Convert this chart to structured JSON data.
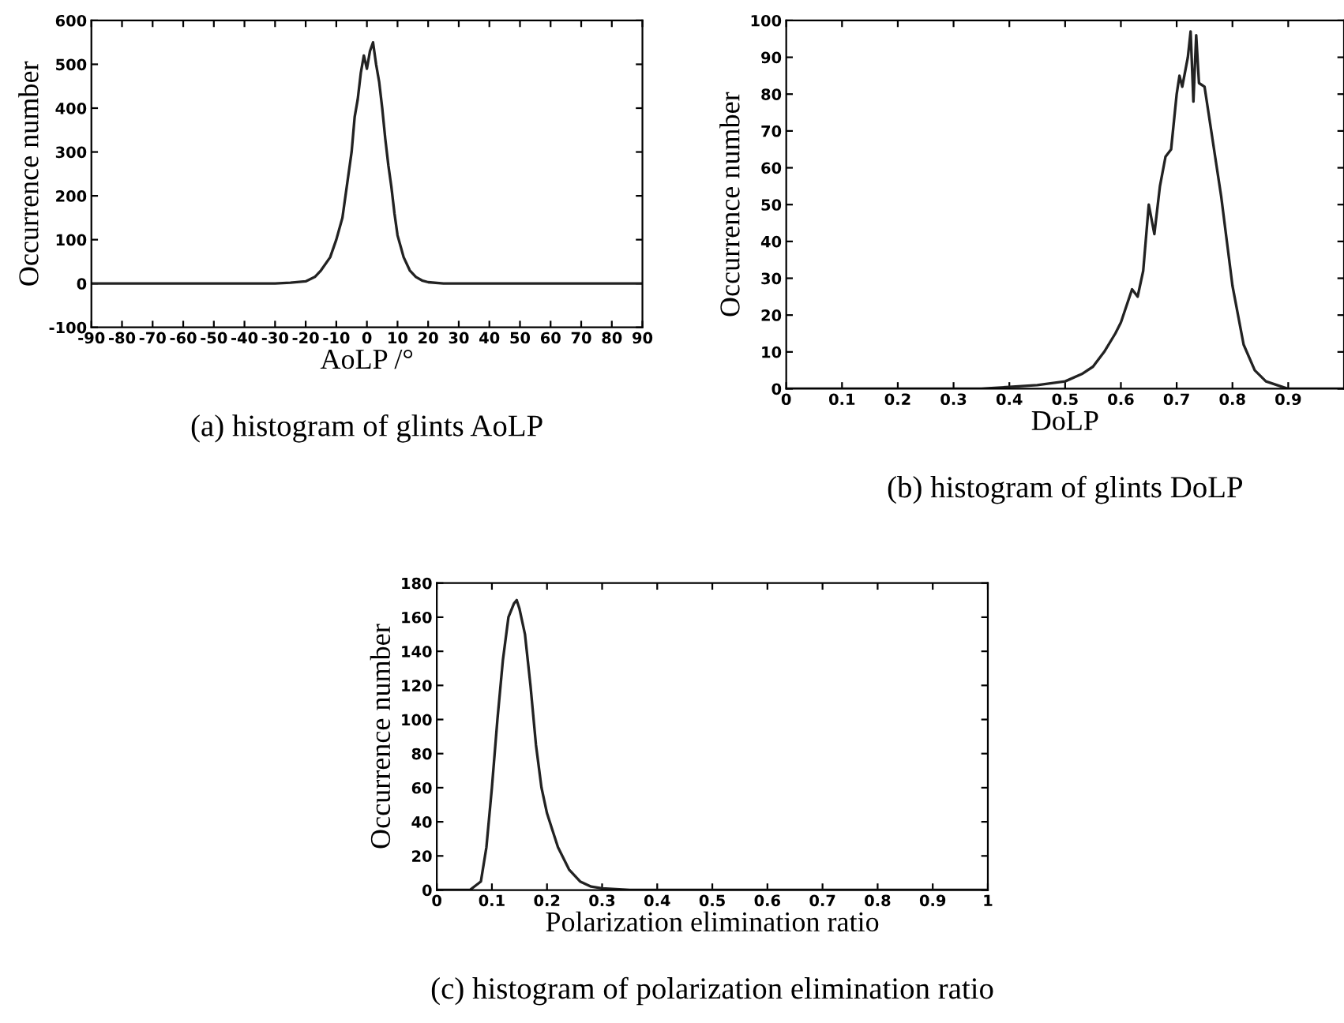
{
  "chart_data": [
    {
      "type": "line",
      "title": "(a) histogram of glints AoLP",
      "xlabel": "AoLP /°",
      "ylabel": "Occurrence number",
      "xlim": [
        -90,
        90
      ],
      "ylim": [
        -100,
        600
      ],
      "xticks": [
        -90,
        -80,
        -70,
        -60,
        -50,
        -40,
        -30,
        -20,
        -10,
        0,
        10,
        20,
        30,
        40,
        50,
        60,
        70,
        80,
        90
      ],
      "yticks": [
        -100,
        0,
        100,
        200,
        300,
        400,
        500,
        600
      ],
      "grid": false,
      "series": [
        {
          "color": "#222222",
          "x": [
            -90,
            -30,
            -25,
            -20,
            -17,
            -15,
            -12,
            -10,
            -8,
            -6,
            -5,
            -4,
            -3,
            -2,
            -1,
            0,
            1,
            2,
            3,
            4,
            5,
            6,
            7,
            8,
            9,
            10,
            12,
            14,
            16,
            18,
            20,
            25,
            90
          ],
          "values": [
            0,
            0,
            2,
            5,
            15,
            30,
            60,
            100,
            150,
            250,
            300,
            380,
            420,
            480,
            520,
            490,
            530,
            550,
            500,
            460,
            400,
            330,
            270,
            220,
            160,
            110,
            60,
            30,
            15,
            7,
            3,
            0,
            0
          ]
        }
      ]
    },
    {
      "type": "line",
      "title": "(b) histogram of glints DoLP",
      "xlabel": "DoLP",
      "ylabel": "Occurrence number",
      "xlim": [
        0,
        1
      ],
      "ylim": [
        0,
        100
      ],
      "xticks": [
        0,
        0.1,
        0.2,
        0.3,
        0.4,
        0.5,
        0.6,
        0.7,
        0.8,
        0.9
      ],
      "yticks": [
        0,
        10,
        20,
        30,
        40,
        50,
        60,
        70,
        80,
        90,
        100
      ],
      "grid": false,
      "series": [
        {
          "color": "#222222",
          "x": [
            0,
            0.35,
            0.4,
            0.45,
            0.5,
            0.53,
            0.55,
            0.57,
            0.59,
            0.6,
            0.62,
            0.63,
            0.64,
            0.65,
            0.66,
            0.67,
            0.68,
            0.69,
            0.7,
            0.705,
            0.71,
            0.72,
            0.725,
            0.73,
            0.735,
            0.74,
            0.75,
            0.76,
            0.77,
            0.78,
            0.79,
            0.8,
            0.82,
            0.84,
            0.86,
            0.88,
            0.9,
            1
          ],
          "values": [
            0,
            0,
            0.5,
            1,
            2,
            4,
            6,
            10,
            15,
            18,
            27,
            25,
            32,
            50,
            42,
            55,
            63,
            65,
            80,
            85,
            82,
            90,
            97,
            78,
            96,
            83,
            82,
            72,
            62,
            52,
            40,
            28,
            12,
            5,
            2,
            1,
            0,
            0
          ]
        }
      ]
    },
    {
      "type": "line",
      "title": "(c) histogram of polarization elimination ratio",
      "xlabel": "Polarization elimination ratio",
      "ylabel": "Occurrence number",
      "xlim": [
        0,
        1
      ],
      "ylim": [
        0,
        180
      ],
      "xticks": [
        0,
        0.1,
        0.2,
        0.3,
        0.4,
        0.5,
        0.6,
        0.7,
        0.8,
        0.9,
        1
      ],
      "yticks": [
        0,
        20,
        40,
        60,
        80,
        100,
        120,
        140,
        160,
        180
      ],
      "grid": false,
      "series": [
        {
          "color": "#222222",
          "x": [
            0,
            0.06,
            0.08,
            0.09,
            0.1,
            0.11,
            0.12,
            0.13,
            0.14,
            0.145,
            0.15,
            0.16,
            0.17,
            0.18,
            0.19,
            0.2,
            0.21,
            0.22,
            0.24,
            0.26,
            0.28,
            0.3,
            0.35,
            1
          ],
          "values": [
            0,
            0,
            5,
            25,
            60,
            100,
            135,
            160,
            168,
            170,
            165,
            150,
            120,
            85,
            60,
            45,
            35,
            25,
            12,
            5,
            2,
            1,
            0,
            0
          ]
        }
      ]
    }
  ]
}
